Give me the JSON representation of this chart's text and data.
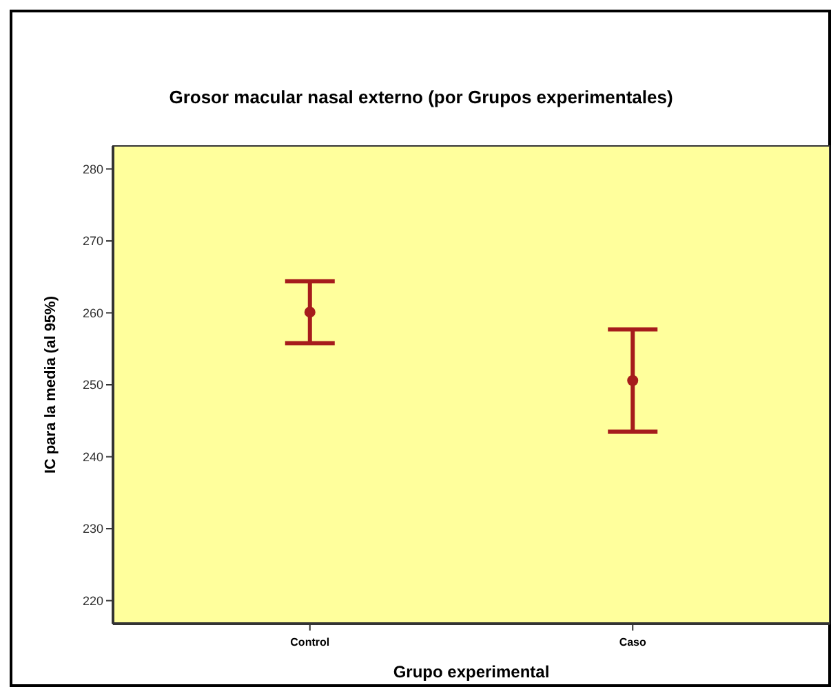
{
  "chart_data": {
    "type": "scatter",
    "title": "Grosor macular nasal externo (por Grupos experimentales)",
    "xlabel": "Grupo experimental",
    "ylabel": "IC para la media (al 95%)",
    "categories": [
      "Control",
      "Caso"
    ],
    "series": [
      {
        "color": "#a61c1c",
        "values": [
          260.1,
          250.6
        ],
        "errors": [
          [
            255.8,
            264.4
          ],
          [
            243.5,
            257.7
          ]
        ]
      }
    ],
    "ylim": [
      216.8,
      283.2
    ],
    "yticks": [
      220,
      230,
      240,
      250,
      260,
      270,
      280
    ],
    "grid": false,
    "marker": "circle"
  }
}
